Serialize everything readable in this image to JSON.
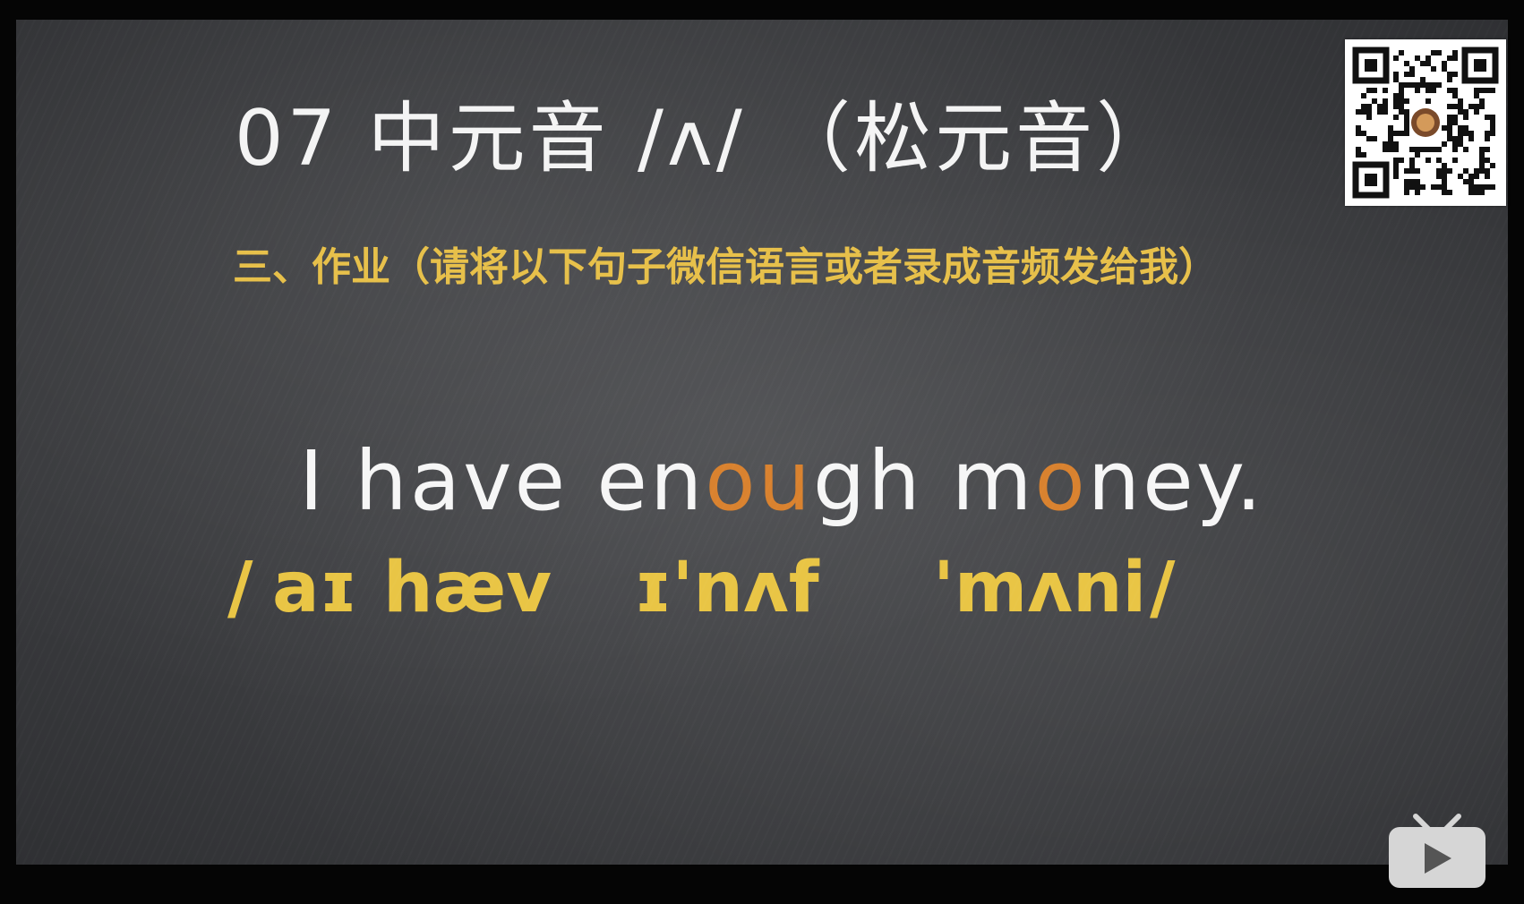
{
  "slide": {
    "title": "07 中元音 /ʌ/ （松元音）",
    "homework_instruction": "三、作业（请将以下句子微信语言或者录成音频发给我）",
    "sentence": {
      "w1": "I",
      "w2": "have",
      "w3a": "en",
      "w3b": "ou",
      "w3c": "gh",
      "w4a": "m",
      "w4b": "o",
      "w4c": "ney."
    },
    "ipa": {
      "open": "/",
      "p1": "aɪ",
      "p2": "hæv",
      "p3": "ɪ'nʌf",
      "p4": "'mʌni",
      "close": "/"
    },
    "highlight_color": "#d9822f",
    "ipa_color": "#e9c545"
  },
  "overlay": {
    "qr_icon": "qr-code-icon",
    "play_icon": "play-button-icon"
  }
}
